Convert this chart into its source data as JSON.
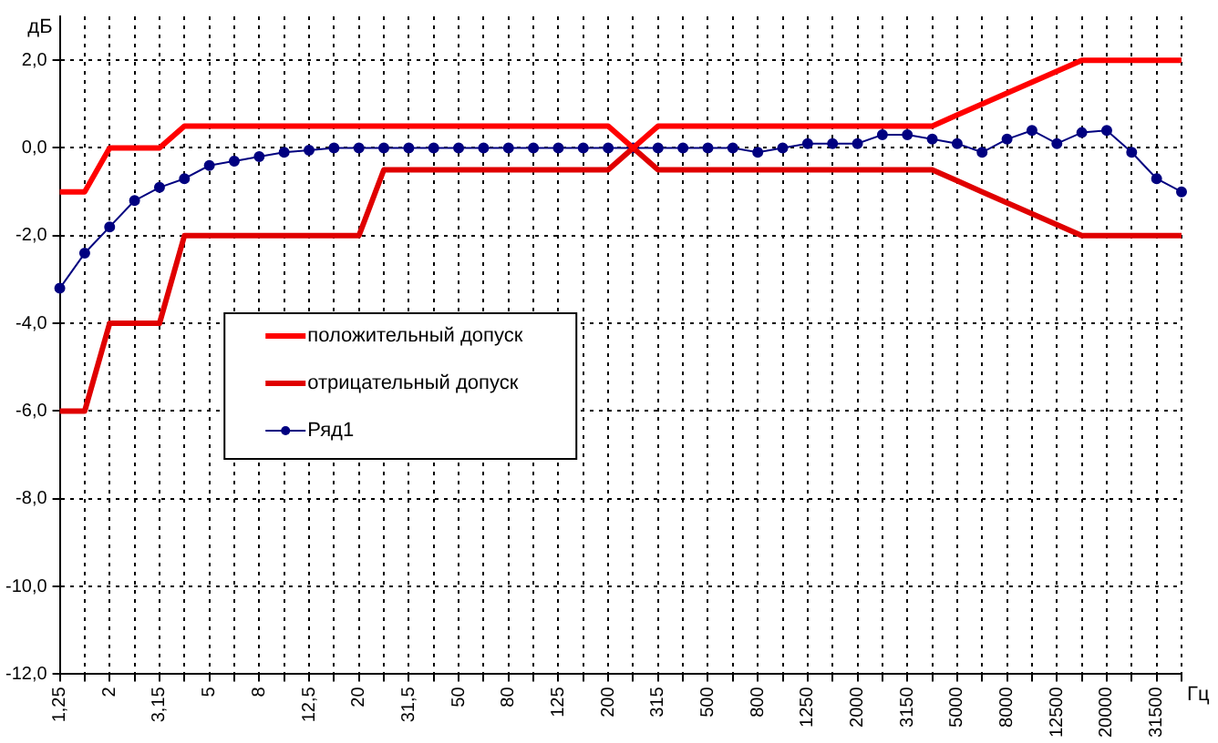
{
  "chart_data": {
    "type": "line",
    "ylabel": "дБ",
    "xlabel": "Гц",
    "categories": [
      "1,25",
      null,
      "2",
      null,
      "3,15",
      null,
      "5",
      null,
      "8",
      null,
      "12,5",
      null,
      "20",
      null,
      "31,5",
      null,
      "50",
      null,
      "80",
      null,
      "125",
      null,
      "200",
      null,
      "315",
      null,
      "500",
      null,
      "800",
      null,
      "1250",
      null,
      "2000",
      null,
      "3150",
      null,
      "5000",
      null,
      "8000",
      null,
      "12500",
      null,
      "20000",
      null,
      "31500",
      null
    ],
    "series": [
      {
        "name": "положительный допуск",
        "color": "#ff0000",
        "marker": "none",
        "values": [
          -1,
          -1,
          0,
          0,
          0,
          0.5,
          0.5,
          0.5,
          0.5,
          0.5,
          0.5,
          0.5,
          0.5,
          0.5,
          0.5,
          0.5,
          0.5,
          0.5,
          0.5,
          0.5,
          0.5,
          0.5,
          0.5,
          0,
          0.5,
          0.5,
          0.5,
          0.5,
          0.5,
          0.5,
          0.5,
          0.5,
          0.5,
          0.5,
          0.5,
          0.5,
          0.75,
          1,
          1.25,
          1.5,
          1.75,
          2,
          2,
          2,
          2,
          2
        ]
      },
      {
        "name": "отрицательный допуск",
        "color": "#e00000",
        "marker": "none",
        "values": [
          -6,
          -6,
          -4,
          -4,
          -4,
          -2,
          -2,
          -2,
          -2,
          -2,
          -2,
          -2,
          -2,
          -0.5,
          -0.5,
          -0.5,
          -0.5,
          -0.5,
          -0.5,
          -0.5,
          -0.5,
          -0.5,
          -0.5,
          0,
          -0.5,
          -0.5,
          -0.5,
          -0.5,
          -0.5,
          -0.5,
          -0.5,
          -0.5,
          -0.5,
          -0.5,
          -0.5,
          -0.5,
          -0.75,
          -1,
          -1.25,
          -1.5,
          -1.75,
          -2,
          -2,
          -2,
          -2,
          -2
        ]
      },
      {
        "name": "Ряд1",
        "color": "#000080",
        "marker": "circle",
        "values": [
          -3.2,
          -2.4,
          -1.8,
          -1.2,
          -0.9,
          -0.7,
          -0.4,
          -0.3,
          -0.2,
          -0.1,
          -0.05,
          0,
          0,
          0,
          0,
          0,
          0,
          0,
          0,
          0,
          0,
          0,
          0,
          0,
          0,
          0,
          0,
          0,
          -0.1,
          0,
          0.1,
          0.1,
          0.1,
          0.3,
          0.3,
          0.2,
          0.1,
          -0.1,
          0.2,
          0.4,
          0.1,
          0.35,
          0.4,
          -0.1,
          -0.7,
          -1
        ]
      }
    ],
    "ylim": [
      -12,
      3
    ],
    "yticks": [
      {
        "value": -12,
        "label": "-12,0"
      },
      {
        "value": -10,
        "label": "-10,0"
      },
      {
        "value": -8,
        "label": "-8,0"
      },
      {
        "value": -6,
        "label": "-6,0"
      },
      {
        "value": -4,
        "label": "-4,0"
      },
      {
        "value": -2,
        "label": "-2,0"
      },
      {
        "value": 0,
        "label": "0,0"
      },
      {
        "value": 2,
        "label": "2,0"
      }
    ],
    "grid": true,
    "legend": "left",
    "line_style": "solid"
  }
}
